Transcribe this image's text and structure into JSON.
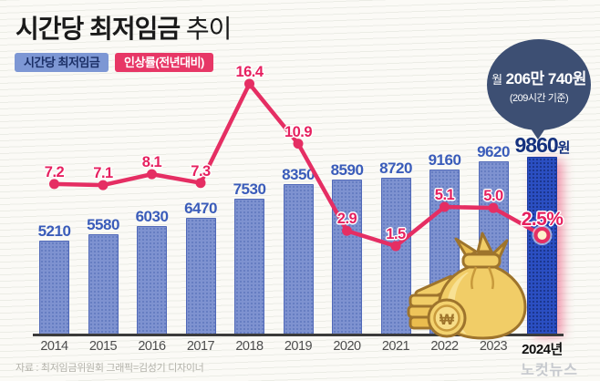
{
  "title": {
    "main": "시간당 최저임금",
    "suffix": "추이"
  },
  "legend": {
    "wage": "시간당 최저임금",
    "rate": "인상률(전년대비)"
  },
  "callout": {
    "prefix": "월",
    "amount": "206만 740원",
    "caption": "(209시간 기준)"
  },
  "chart_data": {
    "type": "bar+line",
    "title": "시간당 최저임금 추이",
    "categories": [
      "2014",
      "2015",
      "2016",
      "2017",
      "2018",
      "2019",
      "2020",
      "2021",
      "2022",
      "2023",
      "2024년"
    ],
    "series": [
      {
        "name": "시간당 최저임금",
        "type": "bar",
        "unit": "원",
        "values": [
          5210,
          5580,
          6030,
          6470,
          7530,
          8350,
          8590,
          8720,
          9160,
          9620,
          9860
        ],
        "color": "#7e92d0",
        "highlight_index": 10,
        "highlight_color": "#2b4fc2"
      },
      {
        "name": "인상률(전년대비)",
        "type": "line",
        "unit": "%",
        "values": [
          7.2,
          7.1,
          8.1,
          7.3,
          16.4,
          10.9,
          2.9,
          1.5,
          5.1,
          5.0,
          2.5
        ],
        "color": "#e52e63"
      }
    ],
    "ylim_bar": [
      0,
      9860
    ],
    "grid": false,
    "legend_position": "top-left",
    "last_bar_label": "9860원",
    "last_rate_label": "2.5%"
  },
  "colors": {
    "bar": "#7e92d0",
    "bar_highlight": "#2b4fc2",
    "line": "#e52e63",
    "bubble_bg": "#3d4f73",
    "legend_wage_bg": "#7d97d4",
    "legend_rate_bg": "#e73766"
  },
  "footer": {
    "source": "자료 : 최저임금위원회  그래픽=김성기 디자이너",
    "logo": "노컷뉴스"
  }
}
